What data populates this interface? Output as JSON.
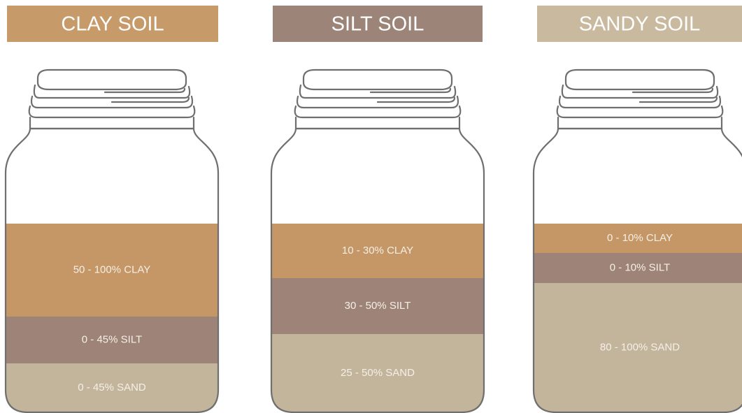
{
  "jars": [
    {
      "title": "CLAY SOIL",
      "layers": [
        "50 - 100% CLAY",
        "0 - 45% SILT",
        "0 - 45% SAND"
      ]
    },
    {
      "title": "SILT SOIL",
      "layers": [
        "10 - 30% CLAY",
        "30 - 50% SILT",
        "25 - 50% SAND"
      ]
    },
    {
      "title": "SANDY SOIL",
      "layers": [
        "0 - 10% CLAY",
        "0 - 10% SILT",
        "80 - 100% SAND"
      ]
    }
  ]
}
